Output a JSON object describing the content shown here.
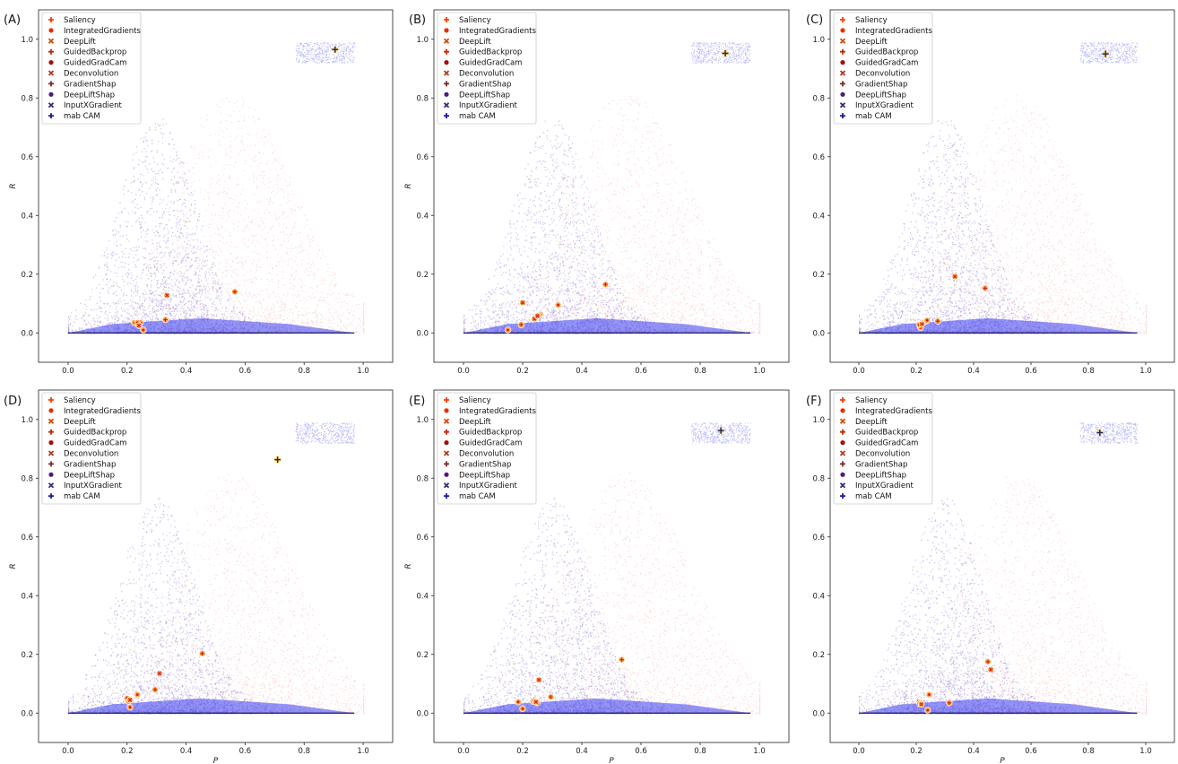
{
  "colors": {
    "cloud_red": "#f06060",
    "cloud_blue": "#3a3cf0",
    "cloud_purple": "#5a1a90",
    "marker_fill": "#ffa640",
    "marker_center": "#d11a1a",
    "best_marker": "#222266"
  },
  "legend_entries": [
    {
      "label": "Saliency",
      "marker": "plus-icon",
      "color": "#ff3c00"
    },
    {
      "label": "IntegratedGradients",
      "marker": "circle-icon",
      "color": "#e63000"
    },
    {
      "label": "DeepLift",
      "marker": "x-icon",
      "color": "#d24a00"
    },
    {
      "label": "GuidedBackprop",
      "marker": "plus-icon",
      "color": "#c02a00"
    },
    {
      "label": "GuidedGradCam",
      "marker": "circle-icon",
      "color": "#a01010"
    },
    {
      "label": "Deconvolution",
      "marker": "x-icon",
      "color": "#b03a20"
    },
    {
      "label": "GradientShap",
      "marker": "plus-icon",
      "color": "#7a2a30"
    },
    {
      "label": "DeepLiftShap",
      "marker": "circle-icon",
      "color": "#4a1a80"
    },
    {
      "label": "InputXGradient",
      "marker": "x-icon",
      "color": "#3a2a70"
    },
    {
      "label": "mab CAM",
      "marker": "plus-icon",
      "color": "#1a1aa0"
    }
  ],
  "chart_data": [
    {
      "panel": "(A)",
      "type": "scatter",
      "xlabel": "",
      "ylabel": "R",
      "xlim": [
        -0.1,
        1.1
      ],
      "ylim": [
        -0.1,
        1.1
      ],
      "xticks": [
        "0.0",
        "0.2",
        "0.4",
        "0.6",
        "0.8",
        "1.0"
      ],
      "yticks": [
        "0.0",
        "0.2",
        "0.4",
        "0.6",
        "0.8",
        "1.0"
      ],
      "legend_position": "upper-left",
      "methods": [
        {
          "name": "Saliency",
          "x": 0.565,
          "y": 0.14
        },
        {
          "name": "IntegratedGradients",
          "x": 0.255,
          "y": 0.01
        },
        {
          "name": "DeepLift",
          "x": 0.335,
          "y": 0.128
        },
        {
          "name": "GuidedBackprop",
          "x": 0.33,
          "y": 0.045
        },
        {
          "name": "GuidedGradCam",
          "x": 0.225,
          "y": 0.035
        },
        {
          "name": "Deconvolution",
          "x": 0.24,
          "y": 0.03
        },
        {
          "name": "GradientShap",
          "x": 0.245,
          "y": 0.035
        },
        {
          "name": "DeepLiftShap",
          "x": 0.235,
          "y": 0.035
        },
        {
          "name": "InputXGradient",
          "x": 0.24,
          "y": 0.025
        },
        {
          "name": "mab CAM",
          "x": 0.905,
          "y": 0.965
        }
      ]
    },
    {
      "panel": "(B)",
      "type": "scatter",
      "xlabel": "",
      "ylabel": "R",
      "xlim": [
        -0.1,
        1.1
      ],
      "ylim": [
        -0.1,
        1.1
      ],
      "xticks": [
        "0.0",
        "0.2",
        "0.4",
        "0.6",
        "0.8",
        "1.0"
      ],
      "yticks": [
        "0.0",
        "0.2",
        "0.4",
        "0.6",
        "0.8",
        "1.0"
      ],
      "legend_position": "upper-left",
      "methods": [
        {
          "name": "Saliency",
          "x": 0.48,
          "y": 0.165
        },
        {
          "name": "IntegratedGradients",
          "x": 0.15,
          "y": 0.01
        },
        {
          "name": "DeepLift",
          "x": 0.2,
          "y": 0.103
        },
        {
          "name": "GuidedBackprop",
          "x": 0.195,
          "y": 0.028
        },
        {
          "name": "GuidedGradCam",
          "x": 0.32,
          "y": 0.095
        },
        {
          "name": "Deconvolution",
          "x": 0.24,
          "y": 0.048
        },
        {
          "name": "GradientShap",
          "x": 0.26,
          "y": 0.063
        },
        {
          "name": "DeepLiftShap",
          "x": 0.255,
          "y": 0.06
        },
        {
          "name": "InputXGradient",
          "x": 0.25,
          "y": 0.058
        },
        {
          "name": "mab CAM",
          "x": 0.885,
          "y": 0.952
        }
      ]
    },
    {
      "panel": "(C)",
      "type": "scatter",
      "xlabel": "",
      "ylabel": "",
      "xlim": [
        -0.1,
        1.1
      ],
      "ylim": [
        -0.1,
        1.1
      ],
      "xticks": [
        "0.0",
        "0.2",
        "0.4",
        "0.6",
        "0.8",
        "1.0"
      ],
      "yticks": [
        "0.0",
        "0.2",
        "0.4",
        "0.6",
        "0.8",
        "1.0"
      ],
      "legend_position": "upper-left",
      "methods": [
        {
          "name": "Saliency",
          "x": 0.44,
          "y": 0.152
        },
        {
          "name": "IntegratedGradients",
          "x": 0.215,
          "y": 0.018
        },
        {
          "name": "DeepLift",
          "x": 0.335,
          "y": 0.192
        },
        {
          "name": "GuidedBackprop",
          "x": 0.275,
          "y": 0.04
        },
        {
          "name": "GuidedGradCam",
          "x": 0.21,
          "y": 0.028
        },
        {
          "name": "Deconvolution",
          "x": 0.225,
          "y": 0.035
        },
        {
          "name": "GradientShap",
          "x": 0.235,
          "y": 0.04
        },
        {
          "name": "DeepLiftShap",
          "x": 0.238,
          "y": 0.043
        },
        {
          "name": "InputXGradient",
          "x": 0.22,
          "y": 0.03
        },
        {
          "name": "mab CAM",
          "x": 0.86,
          "y": 0.95
        }
      ]
    },
    {
      "panel": "(D)",
      "type": "scatter",
      "xlabel": "P",
      "ylabel": "R",
      "xlim": [
        -0.1,
        1.1
      ],
      "ylim": [
        -0.1,
        1.1
      ],
      "xticks": [
        "0.0",
        "0.2",
        "0.4",
        "0.6",
        "0.8",
        "1.0"
      ],
      "yticks": [
        "0.0",
        "0.2",
        "0.4",
        "0.6",
        "0.8",
        "1.0"
      ],
      "legend_position": "upper-left",
      "methods": [
        {
          "name": "Saliency",
          "x": 0.455,
          "y": 0.203
        },
        {
          "name": "IntegratedGradients",
          "x": 0.21,
          "y": 0.02
        },
        {
          "name": "DeepLift",
          "x": 0.31,
          "y": 0.135
        },
        {
          "name": "GuidedBackprop",
          "x": 0.295,
          "y": 0.08
        },
        {
          "name": "GuidedGradCam",
          "x": 0.235,
          "y": 0.063
        },
        {
          "name": "Deconvolution",
          "x": 0.205,
          "y": 0.045
        },
        {
          "name": "GradientShap",
          "x": 0.2,
          "y": 0.05
        },
        {
          "name": "DeepLiftShap",
          "x": 0.205,
          "y": 0.04
        },
        {
          "name": "InputXGradient",
          "x": 0.21,
          "y": 0.045
        },
        {
          "name": "mab CAM",
          "x": 0.71,
          "y": 0.863
        }
      ]
    },
    {
      "panel": "(E)",
      "type": "scatter",
      "xlabel": "P",
      "ylabel": "R",
      "xlim": [
        -0.1,
        1.1
      ],
      "ylim": [
        -0.1,
        1.1
      ],
      "xticks": [
        "0.0",
        "0.2",
        "0.4",
        "0.6",
        "0.8",
        "1.0"
      ],
      "yticks": [
        "0.0",
        "0.2",
        "0.4",
        "0.6",
        "0.8",
        "1.0"
      ],
      "legend_position": "upper-left",
      "methods": [
        {
          "name": "Saliency",
          "x": 0.535,
          "y": 0.182
        },
        {
          "name": "IntegratedGradients",
          "x": 0.2,
          "y": 0.015
        },
        {
          "name": "DeepLift",
          "x": 0.255,
          "y": 0.113
        },
        {
          "name": "GuidedBackprop",
          "x": 0.295,
          "y": 0.055
        },
        {
          "name": "GuidedGradCam",
          "x": 0.185,
          "y": 0.038
        },
        {
          "name": "Deconvolution",
          "x": 0.25,
          "y": 0.035
        },
        {
          "name": "GradientShap",
          "x": 0.235,
          "y": 0.04
        },
        {
          "name": "DeepLiftShap",
          "x": 0.24,
          "y": 0.042
        },
        {
          "name": "InputXGradient",
          "x": 0.245,
          "y": 0.038
        },
        {
          "name": "mab CAM",
          "x": 0.87,
          "y": 0.962
        }
      ]
    },
    {
      "panel": "(F)",
      "type": "scatter",
      "xlabel": "P",
      "ylabel": "",
      "xlim": [
        -0.1,
        1.1
      ],
      "ylim": [
        -0.1,
        1.1
      ],
      "xticks": [
        "0.0",
        "0.2",
        "0.4",
        "0.6",
        "0.8",
        "1.0"
      ],
      "yticks": [
        "0.0",
        "0.2",
        "0.4",
        "0.6",
        "0.8",
        "1.0"
      ],
      "legend_position": "upper-left",
      "methods": [
        {
          "name": "Saliency",
          "x": 0.45,
          "y": 0.175
        },
        {
          "name": "IntegratedGradients",
          "x": 0.24,
          "y": 0.01
        },
        {
          "name": "DeepLift",
          "x": 0.46,
          "y": 0.148
        },
        {
          "name": "GuidedBackprop",
          "x": 0.315,
          "y": 0.035
        },
        {
          "name": "GuidedGradCam",
          "x": 0.245,
          "y": 0.063
        },
        {
          "name": "Deconvolution",
          "x": 0.21,
          "y": 0.038
        },
        {
          "name": "GradientShap",
          "x": 0.215,
          "y": 0.035
        },
        {
          "name": "DeepLiftShap",
          "x": 0.212,
          "y": 0.032
        },
        {
          "name": "InputXGradient",
          "x": 0.218,
          "y": 0.03
        },
        {
          "name": "mab CAM",
          "x": 0.84,
          "y": 0.955
        }
      ]
    }
  ]
}
